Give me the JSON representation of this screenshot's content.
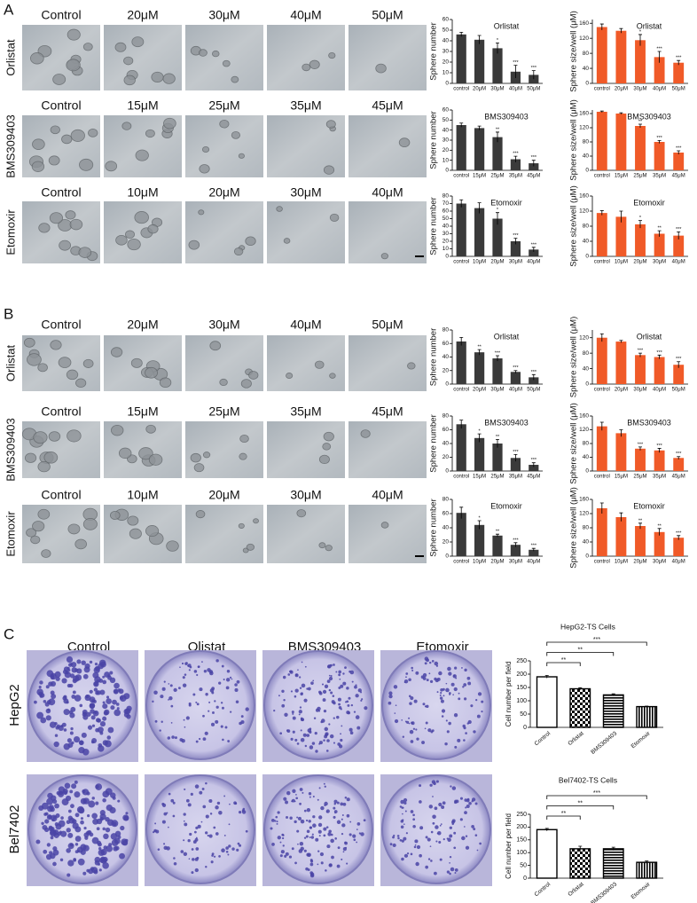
{
  "panels": [
    {
      "label": "A",
      "rows": [
        {
          "name": "Orlistat",
          "columns": [
            "Control",
            "20μM",
            "30μM",
            "40μM",
            "50μM"
          ]
        },
        {
          "name": "BMS309403",
          "columns": [
            "Control",
            "15μM",
            "25μM",
            "35μM",
            "45μM"
          ]
        },
        {
          "name": "Etomoxir",
          "columns": [
            "Control",
            "10μM",
            "20μM",
            "30μM",
            "40μM"
          ]
        }
      ]
    },
    {
      "label": "B",
      "rows": [
        {
          "name": "Orlistat",
          "columns": [
            "Control",
            "20μM",
            "30μM",
            "40μM",
            "50μM"
          ]
        },
        {
          "name": "BMS309403",
          "columns": [
            "Control",
            "15μM",
            "25μM",
            "35μM",
            "45μM"
          ]
        },
        {
          "name": "Etomoxir",
          "columns": [
            "Control",
            "10μM",
            "20μM",
            "30μM",
            "40μM"
          ]
        }
      ]
    },
    {
      "label": "C",
      "columns": [
        "Control",
        "Olistat",
        "BMS309403",
        "Etomoxir"
      ],
      "rows": [
        "HepG2",
        "Bel7402"
      ]
    }
  ],
  "chart_data": [
    {
      "type": "bar",
      "title": "Orlistat",
      "ylabel": "Sphere number",
      "categories": [
        "control",
        "20μM",
        "30μM",
        "40μM",
        "50μM"
      ],
      "values": [
        46,
        41,
        33,
        11,
        8
      ],
      "errors": [
        2,
        4,
        5,
        6,
        4
      ],
      "significance": [
        null,
        null,
        "*",
        "***",
        "***"
      ],
      "ylim": [
        0,
        60
      ],
      "yticks": [
        0,
        10,
        20,
        30,
        40,
        50,
        60
      ],
      "color": "#3a3a3a"
    },
    {
      "type": "bar",
      "title": "Orlistat",
      "ylabel": "Sphere size/well (μM)",
      "categories": [
        "control",
        "20μM",
        "30μM",
        "40μM",
        "50μM"
      ],
      "values": [
        150,
        140,
        115,
        70,
        55
      ],
      "errors": [
        8,
        6,
        15,
        15,
        6
      ],
      "significance": [
        null,
        null,
        "*",
        "***",
        "***"
      ],
      "ylim": [
        0,
        170
      ],
      "yticks": [
        0,
        40,
        80,
        120,
        160
      ],
      "color": "#f05a28"
    },
    {
      "type": "bar",
      "title": "BMS309403",
      "ylabel": "Sphere number",
      "categories": [
        "control",
        "15μM",
        "25μM",
        "35μM",
        "45μM"
      ],
      "values": [
        45,
        42,
        33,
        11,
        7
      ],
      "errors": [
        2,
        2,
        5,
        3,
        3
      ],
      "significance": [
        null,
        null,
        "**",
        "***",
        "***"
      ],
      "ylim": [
        0,
        60
      ],
      "yticks": [
        0,
        10,
        20,
        30,
        40,
        50,
        60
      ],
      "color": "#3a3a3a"
    },
    {
      "type": "bar",
      "title": "BMS309403",
      "ylabel": "Sphere size/well (μM)",
      "categories": [
        "control",
        "15μM",
        "25μM",
        "35μM",
        "45μM"
      ],
      "values": [
        165,
        160,
        125,
        80,
        50
      ],
      "errors": [
        2,
        2,
        5,
        4,
        5
      ],
      "significance": [
        null,
        null,
        "**",
        "***",
        "***"
      ],
      "ylim": [
        0,
        170
      ],
      "yticks": [
        0,
        40,
        80,
        120,
        160
      ],
      "color": "#f05a28"
    },
    {
      "type": "bar",
      "title": "Etomoxir",
      "ylabel": "Sphere number",
      "categories": [
        "control",
        "10μM",
        "20μM",
        "30μM",
        "40μM"
      ],
      "values": [
        70,
        64,
        50,
        20,
        9
      ],
      "errors": [
        5,
        7,
        8,
        4,
        3
      ],
      "significance": [
        null,
        null,
        "*",
        "***",
        "***"
      ],
      "ylim": [
        0,
        80
      ],
      "yticks": [
        0,
        10,
        20,
        30,
        40,
        50,
        60,
        70,
        80
      ],
      "color": "#3a3a3a"
    },
    {
      "type": "bar",
      "title": "Etomoxir",
      "ylabel": "Sphere size/well (μM)",
      "categories": [
        "control",
        "10μM",
        "20μM",
        "30μM",
        "40μM"
      ],
      "values": [
        115,
        105,
        85,
        60,
        55
      ],
      "errors": [
        6,
        15,
        10,
        8,
        10
      ],
      "significance": [
        null,
        null,
        "*",
        "**",
        "***"
      ],
      "ylim": [
        0,
        160
      ],
      "yticks": [
        0,
        40,
        80,
        120,
        160
      ],
      "color": "#f05a28"
    },
    {
      "type": "bar",
      "title": "Orlistat",
      "ylabel": "Sphere number",
      "categories": [
        "control",
        "20μM",
        "30μM",
        "40μM",
        "50μM"
      ],
      "values": [
        63,
        47,
        38,
        18,
        10
      ],
      "errors": [
        6,
        4,
        4,
        2,
        4
      ],
      "significance": [
        null,
        "**",
        "***",
        "***",
        "***"
      ],
      "ylim": [
        0,
        80
      ],
      "yticks": [
        0,
        20,
        40,
        60,
        80
      ],
      "color": "#3a3a3a"
    },
    {
      "type": "bar",
      "title": "Orlistat",
      "ylabel": "Sphere size/well (μM)",
      "categories": [
        "control",
        "20μM",
        "30μM",
        "40μM",
        "50μM"
      ],
      "values": [
        120,
        110,
        75,
        70,
        50
      ],
      "errors": [
        10,
        3,
        5,
        5,
        8
      ],
      "significance": [
        null,
        null,
        "***",
        "***",
        "***"
      ],
      "ylim": [
        0,
        140
      ],
      "yticks": [
        0,
        40,
        80,
        120
      ],
      "color": "#f05a28"
    },
    {
      "type": "bar",
      "title": "BMS309403",
      "ylabel": "Sphere number",
      "categories": [
        "control",
        "15μM",
        "25μM",
        "35μM",
        "45μM"
      ],
      "values": [
        68,
        48,
        40,
        19,
        9
      ],
      "errors": [
        6,
        6,
        6,
        5,
        3
      ],
      "significance": [
        null,
        "*",
        "**",
        "***",
        "***"
      ],
      "ylim": [
        0,
        80
      ],
      "yticks": [
        0,
        20,
        40,
        60,
        80
      ],
      "color": "#3a3a3a"
    },
    {
      "type": "bar",
      "title": "BMS309403",
      "ylabel": "Sphere size/well (μM)",
      "categories": [
        "control",
        "15μM",
        "25μM",
        "35μM",
        "45μM"
      ],
      "values": [
        130,
        110,
        65,
        60,
        38
      ],
      "errors": [
        12,
        10,
        5,
        6,
        4
      ],
      "significance": [
        null,
        null,
        "***",
        "***",
        "***"
      ],
      "ylim": [
        0,
        160
      ],
      "yticks": [
        0,
        40,
        80,
        120,
        160
      ],
      "color": "#f05a28"
    },
    {
      "type": "bar",
      "title": "Etomoxir",
      "ylabel": "Sphere number",
      "categories": [
        "control",
        "10μM",
        "20μM",
        "30μM",
        "40μM"
      ],
      "values": [
        61,
        44,
        29,
        16,
        9
      ],
      "errors": [
        8,
        6,
        2,
        3,
        2
      ],
      "significance": [
        null,
        "*",
        "**",
        "***",
        "***"
      ],
      "ylim": [
        0,
        80
      ],
      "yticks": [
        0,
        20,
        40,
        60,
        80
      ],
      "color": "#3a3a3a"
    },
    {
      "type": "bar",
      "title": "Etomoxir",
      "ylabel": "Sphere size/well (μM)",
      "categories": [
        "control",
        "10μM",
        "20μM",
        "30μM",
        "40μM"
      ],
      "values": [
        135,
        110,
        85,
        68,
        52
      ],
      "errors": [
        15,
        12,
        8,
        10,
        6
      ],
      "significance": [
        null,
        null,
        "**",
        "**",
        "***"
      ],
      "ylim": [
        0,
        160
      ],
      "yticks": [
        0,
        40,
        80,
        120,
        160
      ],
      "color": "#f05a28"
    },
    {
      "type": "bar",
      "title": "HepG2-TS Cells",
      "ylabel": "Cell number per field",
      "categories": [
        "Control",
        "Orlistat",
        "BMS309403",
        "Etomoxir"
      ],
      "values": [
        190,
        145,
        122,
        78
      ],
      "errors": [
        5,
        4,
        4,
        2
      ],
      "comparisons": [
        "**",
        "**",
        "***"
      ],
      "fill_patterns": [
        "none",
        "checker",
        "hlines",
        "vlines"
      ],
      "ylim": [
        0,
        250
      ],
      "yticks": [
        0,
        50,
        100,
        150,
        200,
        250
      ],
      "color": "#000000"
    },
    {
      "type": "bar",
      "title": "Bel7402-TS Cells",
      "ylabel": "Cell number per field",
      "categories": [
        "Control",
        "Orlistat",
        "BMS309403",
        "Etomoxir"
      ],
      "values": [
        190,
        115,
        115,
        62
      ],
      "errors": [
        5,
        10,
        6,
        5
      ],
      "comparisons": [
        "**",
        "**",
        "***"
      ],
      "fill_patterns": [
        "none",
        "checker",
        "hlines",
        "vlines"
      ],
      "ylim": [
        0,
        250
      ],
      "yticks": [
        0,
        50,
        100,
        150,
        200,
        250
      ],
      "color": "#000000"
    }
  ]
}
